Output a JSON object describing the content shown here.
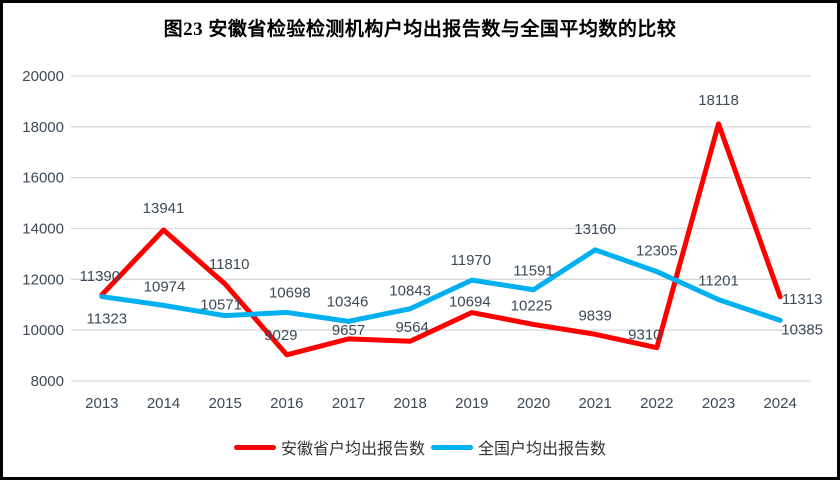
{
  "chart_data": {
    "type": "line",
    "title": "图23 安徽省检验检测机构户均出报告数与全国平均数的比较",
    "xlabel": "",
    "ylabel": "",
    "categories": [
      "2013",
      "2014",
      "2015",
      "2016",
      "2017",
      "2018",
      "2019",
      "2020",
      "2021",
      "2022",
      "2023",
      "2024"
    ],
    "series": [
      {
        "name": "安徽省户均出报告数",
        "color": "#fe0000",
        "values": [
          11390,
          13941,
          11810,
          9029,
          9657,
          9564,
          10694,
          10225,
          9839,
          9310,
          18118,
          11313
        ],
        "label_offsets": [
          [
            -2,
            -19
          ],
          [
            0,
            -22
          ],
          [
            4,
            -20
          ],
          [
            -6,
            -20
          ],
          [
            0,
            -9
          ],
          [
            2,
            -14
          ],
          [
            -2,
            -11
          ],
          [
            -2,
            -19
          ],
          [
            0,
            -19
          ],
          [
            -12,
            -13
          ],
          [
            0,
            -24
          ],
          [
            22,
            2
          ]
        ]
      },
      {
        "name": "全国户均出报告数",
        "color": "#00b0f0",
        "values": [
          11323,
          10974,
          10571,
          10698,
          10346,
          10843,
          11970,
          11591,
          13160,
          12305,
          11201,
          10385
        ],
        "label_offsets": [
          [
            5,
            22
          ],
          [
            1,
            -19
          ],
          [
            -4,
            -11
          ],
          [
            3,
            -20
          ],
          [
            -1,
            -20
          ],
          [
            0,
            -18
          ],
          [
            -1,
            -20
          ],
          [
            0,
            -19
          ],
          [
            0,
            -21
          ],
          [
            0,
            -21
          ],
          [
            0,
            -19
          ],
          [
            22,
            9
          ]
        ]
      }
    ],
    "ylim": [
      8000,
      20000
    ],
    "ytick_step": 2000,
    "yticks": [
      8000,
      10000,
      12000,
      14000,
      16000,
      18000,
      20000
    ],
    "grid": true,
    "legend_position": "bottom",
    "colors": {
      "grid": "#d9d9d9",
      "axis_label": "#3d4a57",
      "data_label": "#3d4a57",
      "legend_text": "#333333",
      "title": "#000000",
      "border": "#000000"
    }
  }
}
